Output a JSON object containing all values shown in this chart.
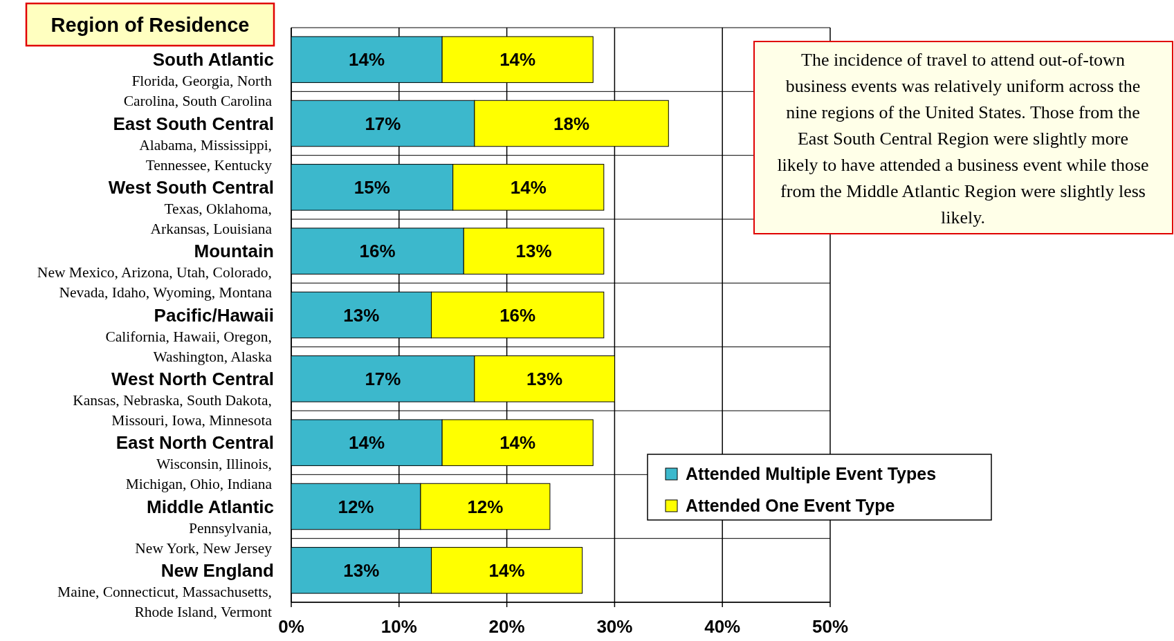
{
  "chart_data": {
    "type": "bar",
    "orientation": "horizontal",
    "stacked": true,
    "title": "Region of Residence",
    "categories": [
      "South Atlantic\nFlorida, Georgia, North\nCarolina, South Carolina",
      "East South Central\nAlabama, Mississippi,\nTennessee, Kentucky",
      "West South Central\nTexas, Oklahoma,\nArkansas, Louisiana",
      "Mountain\nNew Mexico, Arizona, Utah, Colorado,\nNevada, Idaho, Wyoming, Montana",
      "Pacific/Hawaii\nCalifornia, Hawaii, Oregon,\nWashington, Alaska",
      "West North Central\nKansas, Nebraska, South Dakota,\nMissouri, Iowa, Minnesota",
      "East North Central\nWisconsin, Illinois,\nMichigan, Ohio, Indiana",
      "Middle Atlantic\nPennsylvania,\nNew York, New Jersey",
      "New England\nMaine, Connecticut, Massachusetts,\nRhode Island, Vermont"
    ],
    "series": [
      {
        "name": "Attended Multiple Event Types",
        "color": "#3cb8cc",
        "values": [
          14,
          17,
          15,
          16,
          13,
          17,
          14,
          12,
          13
        ],
        "value_labels": [
          "14%",
          "17%",
          "15%",
          "16%",
          "13%",
          "17%",
          "14%",
          "12%",
          "13%"
        ]
      },
      {
        "name": "Attended One Event Type",
        "color": "#ffff00",
        "values": [
          14,
          18,
          14,
          13,
          16,
          13,
          14,
          12,
          14
        ],
        "value_labels": [
          "14%",
          "18%",
          "14%",
          "13%",
          "16%",
          "13%",
          "14%",
          "12%",
          "14%"
        ]
      }
    ],
    "xlim": [
      0,
      50
    ],
    "xticks": [
      {
        "value": 0,
        "label": "0%"
      },
      {
        "value": 10,
        "label": "10%"
      },
      {
        "value": 20,
        "label": "20%"
      },
      {
        "value": 30,
        "label": "30%"
      },
      {
        "value": 40,
        "label": "40%"
      },
      {
        "value": 50,
        "label": "50%"
      }
    ],
    "grid": true,
    "legend": "bottom right",
    "annotations": [
      "The incidence of travel to attend out-of-town business events was relatively uniform across the nine regions of the United States. Those from the East South Central Region were slightly more likely to have attended a business event while those from the Middle Atlantic Region were slightly less likely."
    ]
  }
}
